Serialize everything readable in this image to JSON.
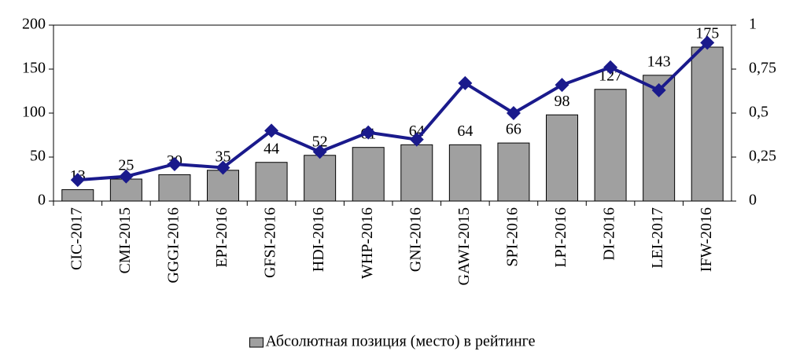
{
  "chart_data": {
    "type": "bar",
    "categories": [
      "CIC-2017",
      "CMI-2015",
      "GGGI-2016",
      "EPI-2016",
      "GFSI-2016",
      "HDI-2016",
      "WHP-2016",
      "GNI-2016",
      "GAWI-2015",
      "SPI-2016",
      "LPI-2016",
      "DI-2016",
      "LEI-2017",
      "IFW-2016"
    ],
    "series": [
      {
        "name": "Абсолютная позиция (место) в рейтинге",
        "type": "bar",
        "color": "#a0a0a0",
        "values": [
          13,
          25,
          30,
          35,
          44,
          52,
          61,
          64,
          64,
          66,
          98,
          127,
          143,
          175
        ]
      },
      {
        "type": "line",
        "axis": "y2",
        "color": "#1a1a8c",
        "values": [
          0.12,
          0.14,
          0.21,
          0.19,
          0.4,
          0.28,
          0.39,
          0.35,
          0.67,
          0.5,
          0.66,
          0.76,
          0.63,
          0.9
        ]
      }
    ],
    "ylim": [
      0,
      200
    ],
    "yticks": [
      0,
      50,
      100,
      150,
      200
    ],
    "y2lim": [
      0,
      1
    ],
    "y2ticks": [
      0,
      {
        "value": 0.25,
        "label": "0,25"
      },
      {
        "value": 0.5,
        "label": "0,5"
      },
      {
        "value": 0.75,
        "label": "0,75"
      },
      1
    ],
    "legend": "bottom"
  }
}
